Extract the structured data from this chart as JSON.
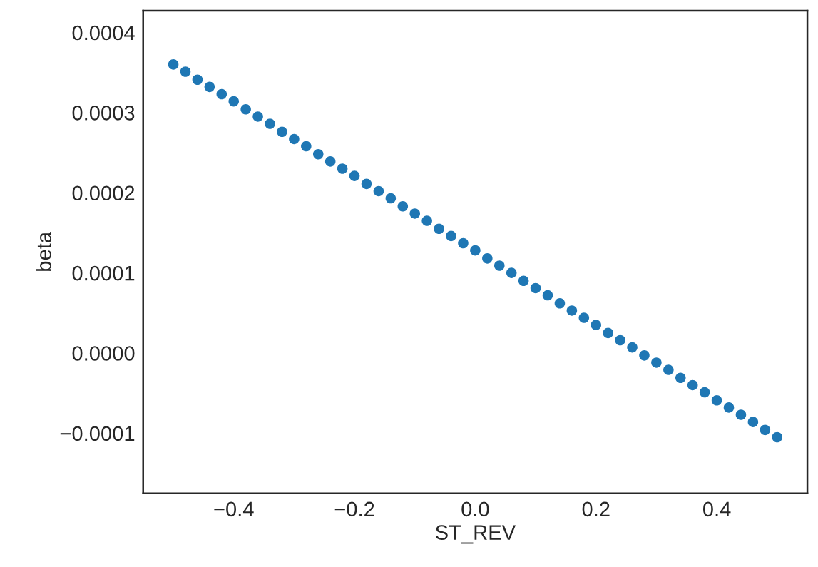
{
  "chart_data": {
    "type": "scatter",
    "xlabel": "ST_REV",
    "ylabel": "beta",
    "marker": "circle",
    "grid": false,
    "x": [
      -0.5,
      -0.48,
      -0.46,
      -0.44,
      -0.42,
      -0.4,
      -0.38,
      -0.36,
      -0.34,
      -0.32,
      -0.3,
      -0.28,
      -0.26,
      -0.24,
      -0.22,
      -0.2,
      -0.18,
      -0.16,
      -0.14,
      -0.12,
      -0.1,
      -0.08,
      -0.06,
      -0.04,
      -0.02,
      0.0,
      0.02,
      0.04,
      0.06,
      0.08,
      0.1,
      0.12,
      0.14,
      0.16,
      0.18,
      0.2,
      0.22,
      0.24,
      0.26,
      0.28,
      0.3,
      0.32,
      0.34,
      0.36,
      0.38,
      0.4,
      0.42,
      0.44,
      0.46,
      0.48,
      0.5
    ],
    "series": [
      {
        "color": "#1f77b4",
        "values": [
          0.00036,
          0.000351,
          0.000341,
          0.000332,
          0.000323,
          0.000314,
          0.000304,
          0.000295,
          0.000286,
          0.000276,
          0.000267,
          0.000258,
          0.000248,
          0.000239,
          0.00023,
          0.000221,
          0.000211,
          0.000202,
          0.000193,
          0.000183,
          0.000174,
          0.000165,
          0.000155,
          0.000146,
          0.000137,
          0.000128,
          0.000118,
          0.000109,
          0.0001,
          9e-05,
          8.1e-05,
          7.2e-05,
          6.2e-05,
          5.3e-05,
          4.4e-05,
          3.5e-05,
          2.5e-05,
          1.6e-05,
          7e-06,
          -3e-06,
          -1.2e-05,
          -2.1e-05,
          -3.1e-05,
          -4e-05,
          -4.9e-05,
          -5.9e-05,
          -6.8e-05,
          -7.7e-05,
          -8.6e-05,
          -9.6e-05,
          -0.000105
        ]
      }
    ],
    "xlim": [
      -0.55,
      0.55
    ],
    "xticks": [
      {
        "value": -0.4,
        "label": "−0.4"
      },
      {
        "value": -0.2,
        "label": "−0.2"
      },
      {
        "value": 0.0,
        "label": "0.0"
      },
      {
        "value": 0.2,
        "label": "0.2"
      },
      {
        "value": 0.4,
        "label": "0.4"
      }
    ],
    "ylim": [
      -0.000175,
      0.000427
    ],
    "yticks": [
      {
        "value": -0.0001,
        "label": "−0.0001"
      },
      {
        "value": 0.0,
        "label": "0.0000"
      },
      {
        "value": 0.0001,
        "label": "0.0001"
      },
      {
        "value": 0.0002,
        "label": "0.0002"
      },
      {
        "value": 0.0003,
        "label": "0.0003"
      },
      {
        "value": 0.0004,
        "label": "0.0004"
      }
    ]
  }
}
